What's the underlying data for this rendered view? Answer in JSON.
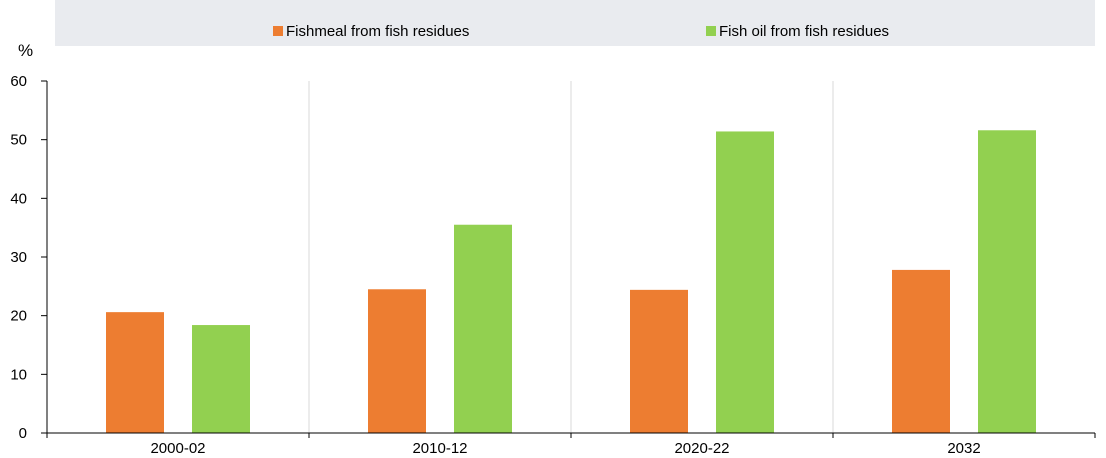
{
  "chart_data": {
    "type": "bar",
    "title": "",
    "xlabel": "",
    "ylabel": "%",
    "ylim": [
      0,
      60
    ],
    "yticks": [
      "0",
      "10",
      "20",
      "30",
      "40",
      "50",
      "60"
    ],
    "categories": [
      "2000-02",
      "2010-12",
      "2020-22",
      "2032"
    ],
    "series": [
      {
        "name": "Fishmeal from fish residues",
        "values": [
          20.6,
          24.5,
          24.4,
          27.8
        ],
        "color": "#ed7d31"
      },
      {
        "name": "Fish oil from fish residues",
        "values": [
          18.4,
          35.5,
          51.4,
          51.6
        ],
        "color": "#92d050"
      }
    ],
    "grid": "vertical",
    "legend_position": "top"
  }
}
